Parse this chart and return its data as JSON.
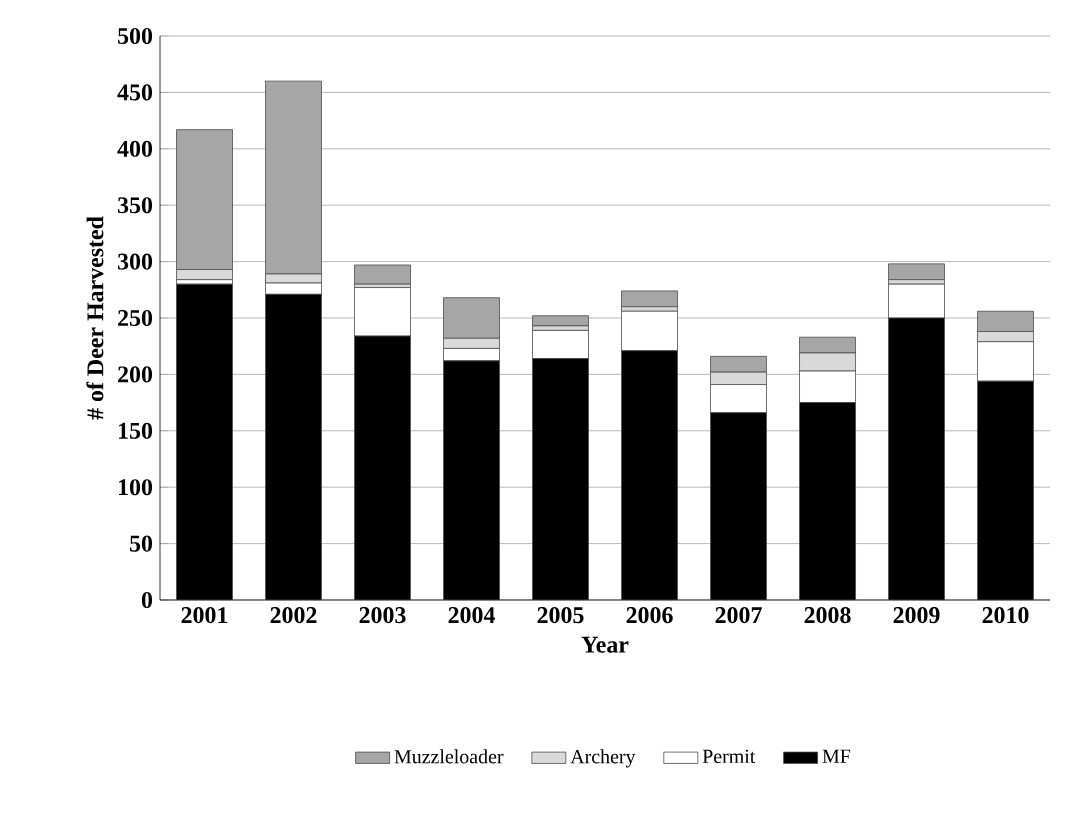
{
  "chart_data": {
    "type": "bar",
    "stacked": true,
    "xlabel": "Year",
    "ylabel": "# of Deer Harvested",
    "categories": [
      "2001",
      "2002",
      "2003",
      "2004",
      "2005",
      "2006",
      "2007",
      "2008",
      "2009",
      "2010"
    ],
    "series": [
      {
        "name": "MF",
        "color": "#000000",
        "values": [
          280,
          271,
          234,
          212,
          214,
          221,
          166,
          175,
          250,
          194
        ]
      },
      {
        "name": "Permit",
        "color": "#ffffff",
        "values": [
          4,
          10,
          43,
          11,
          25,
          35,
          25,
          28,
          30,
          35
        ]
      },
      {
        "name": "Archery",
        "color": "#d9d9d9",
        "values": [
          9,
          8,
          3,
          9,
          4,
          4,
          11,
          16,
          4,
          9
        ]
      },
      {
        "name": "Muzzleloader",
        "color": "#a6a6a6",
        "values": [
          124,
          171,
          17,
          36,
          9,
          14,
          14,
          14,
          14,
          18
        ]
      }
    ],
    "ylim": [
      0,
      500
    ],
    "yticks": [
      0,
      50,
      100,
      150,
      200,
      250,
      300,
      350,
      400,
      450,
      500
    ],
    "grid": "y",
    "legend": "bottom"
  }
}
